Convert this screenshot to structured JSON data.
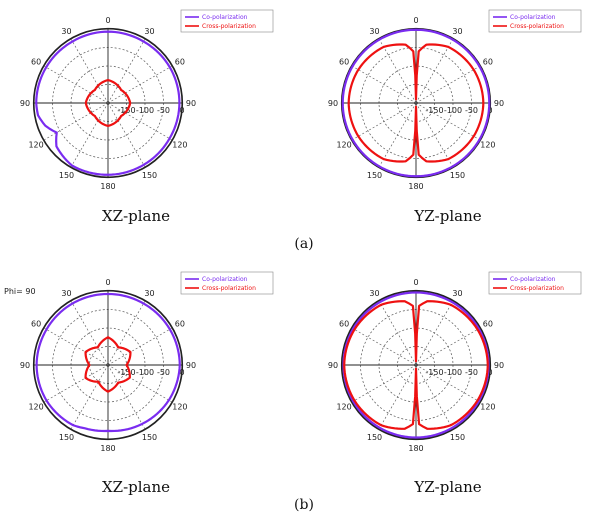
{
  "labels": {
    "xz": "XZ-plane",
    "yz": "YZ-plane",
    "row_a": "(a)",
    "row_b": "(b)",
    "phi_note": "Phi= 90"
  },
  "legend": {
    "co": "Co-polarization",
    "cross": "Cross-polarization"
  },
  "colors": {
    "co": "#7a2cf0",
    "cross": "#ee1111",
    "grid": "#555555"
  },
  "chart_data": [
    {
      "type": "polar-line",
      "panel": "a-xz",
      "angle_ticks": [
        "0",
        "30",
        "60",
        "90",
        "120",
        "150",
        "180",
        "150",
        "120",
        "90",
        "60",
        "30"
      ],
      "radial_ticks": [
        "-150",
        "-100",
        "-50",
        "0"
      ],
      "r_range": [
        -200,
        0
      ],
      "series": [
        {
          "name": "Co-polarization",
          "kind": "co",
          "theta": [
            0,
            30,
            60,
            90,
            120,
            150,
            180,
            210,
            230,
            240,
            250,
            260,
            270,
            300,
            330,
            360
          ],
          "r": [
            -7,
            -8,
            -7,
            -7,
            -8,
            -7,
            -6,
            -5,
            -18,
            -40,
            -20,
            -8,
            -6,
            -7,
            -8,
            -7
          ]
        },
        {
          "name": "Cross-polarization",
          "kind": "cross",
          "theta": [
            0,
            45,
            90,
            135,
            180,
            225,
            270,
            315,
            360
          ],
          "r": [
            -138,
            -150,
            -140,
            -150,
            -138,
            -150,
            -140,
            -150,
            -138
          ]
        }
      ]
    },
    {
      "type": "polar-line",
      "panel": "a-yz",
      "angle_ticks": [
        "0",
        "30",
        "60",
        "90",
        "120",
        "150",
        "180",
        "150",
        "120",
        "90",
        "60",
        "30"
      ],
      "radial_ticks": [
        "-150",
        "-100",
        "-50",
        "0"
      ],
      "r_range": [
        -200,
        0
      ],
      "series": [
        {
          "name": "Co-polarization",
          "kind": "co",
          "theta": [
            0,
            30,
            60,
            90,
            120,
            150,
            180,
            210,
            240,
            270,
            300,
            330,
            360
          ],
          "r": [
            -2,
            -2,
            -2,
            -2,
            -2,
            -2,
            -2,
            -2,
            -2,
            -2,
            -2,
            -2,
            -2
          ]
        },
        {
          "name": "Cross-polarization",
          "kind": "cross",
          "theta": [
            0,
            3,
            10,
            30,
            60,
            90,
            120,
            150,
            170,
            177,
            180,
            183,
            190,
            210,
            240,
            270,
            300,
            330,
            350,
            357,
            360
          ],
          "r": [
            -190,
            -60,
            -40,
            -25,
            -20,
            -18,
            -20,
            -25,
            -40,
            -60,
            -190,
            -60,
            -40,
            -25,
            -20,
            -18,
            -20,
            -25,
            -40,
            -60,
            -190
          ]
        }
      ]
    },
    {
      "type": "polar-line",
      "panel": "b-xz",
      "angle_ticks": [
        "0",
        "30",
        "60",
        "90",
        "120",
        "150",
        "180",
        "150",
        "120",
        "90",
        "60",
        "30"
      ],
      "radial_ticks": [
        "-150",
        "-100",
        "-50",
        "0"
      ],
      "r_range": [
        -200,
        0
      ],
      "series": [
        {
          "name": "Co-polarization",
          "kind": "co",
          "theta": [
            0,
            30,
            60,
            90,
            120,
            150,
            160,
            180,
            200,
            210,
            240,
            270,
            300,
            330,
            360
          ],
          "r": [
            -8,
            -8,
            -7,
            -6,
            -10,
            -16,
            -18,
            -22,
            -18,
            -12,
            -8,
            -7,
            -8,
            -8,
            -8
          ]
        },
        {
          "name": "Cross-polarization",
          "kind": "cross",
          "theta": [
            0,
            30,
            60,
            90,
            120,
            150,
            180,
            210,
            240,
            270,
            300,
            330,
            360
          ],
          "r": [
            -125,
            -145,
            -130,
            -150,
            -132,
            -145,
            -128,
            -148,
            -130,
            -150,
            -130,
            -145,
            -125
          ]
        }
      ]
    },
    {
      "type": "polar-line",
      "panel": "b-yz",
      "angle_ticks": [
        "0",
        "30",
        "60",
        "90",
        "120",
        "150",
        "180",
        "150",
        "120",
        "90",
        "60",
        "30"
      ],
      "radial_ticks": [
        "-150",
        "-100",
        "-50",
        "0"
      ],
      "r_range": [
        -200,
        0
      ],
      "series": [
        {
          "name": "Co-polarization",
          "kind": "co",
          "theta": [
            0,
            30,
            60,
            90,
            120,
            150,
            180,
            210,
            240,
            270,
            300,
            330,
            360
          ],
          "r": [
            -4,
            -4,
            -4,
            -4,
            -4,
            -4,
            -4,
            -4,
            -4,
            -4,
            -4,
            -4,
            -4
          ]
        },
        {
          "name": "Cross-polarization",
          "kind": "cross",
          "theta": [
            0,
            3,
            10,
            30,
            60,
            90,
            120,
            150,
            170,
            177,
            180,
            183,
            190,
            210,
            240,
            270,
            300,
            330,
            350,
            357,
            360
          ],
          "r": [
            -190,
            -40,
            -25,
            -12,
            -8,
            -6,
            -8,
            -12,
            -25,
            -40,
            -190,
            -40,
            -25,
            -12,
            -8,
            -6,
            -8,
            -12,
            -25,
            -40,
            -190
          ]
        }
      ]
    }
  ]
}
